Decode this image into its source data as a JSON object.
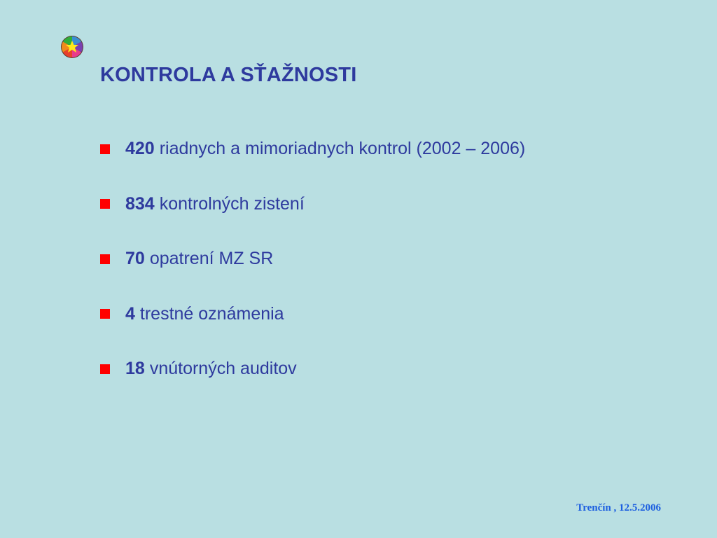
{
  "slide": {
    "title": "KONTROLA A SŤAŽNOSTI",
    "bullets": [
      {
        "number": "420",
        "text": "riadnych a mimoriadnych kontrol (2002 – 2006)"
      },
      {
        "number": "834",
        "text": "kontrolných zistení"
      },
      {
        "number": "70",
        "text": "opatrení MZ SR"
      },
      {
        "number": "4",
        "text": "trestné oznámenia"
      },
      {
        "number": "18",
        "text": "vnútorných auditov"
      }
    ],
    "footer": "Trenčín , 12.5.2006",
    "logo_icon": "multicolor-puzzle-circle-icon"
  },
  "colors": {
    "background": "#b9dfe2",
    "title": "#2e3a9e",
    "bullet": "#ff0000",
    "footer": "#1d5fe0"
  }
}
